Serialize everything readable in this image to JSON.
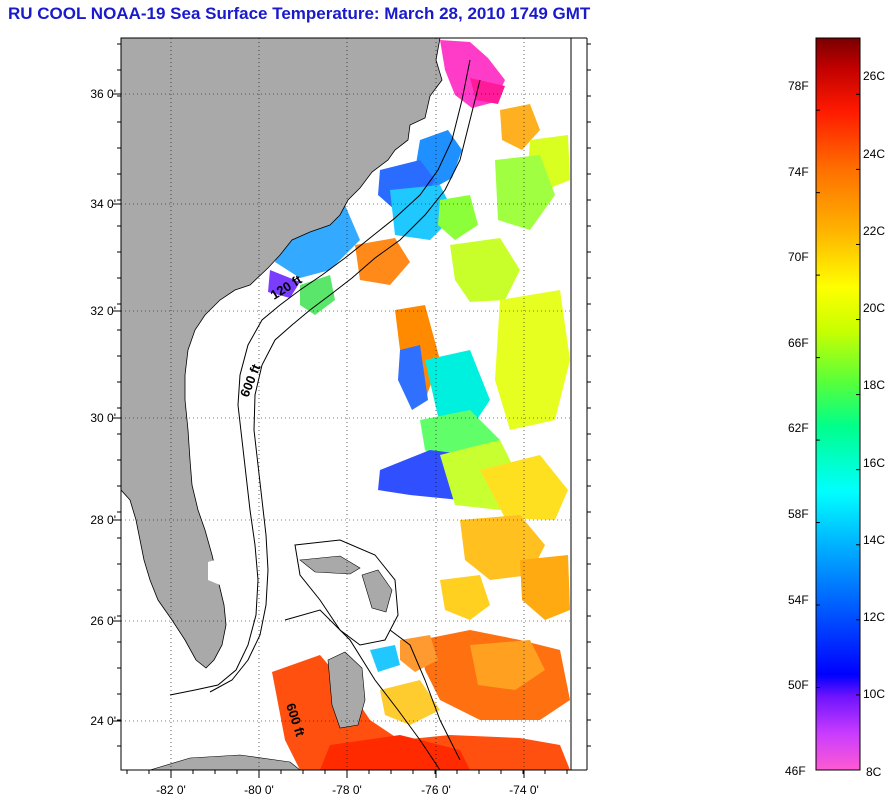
{
  "title": "RU COOL  NOAA-19  Sea Surface Temperature:  March 28, 2010 1749 GMT",
  "map": {
    "lat_labels": [
      "36 0'",
      "34 0'",
      "32 0'",
      "30 0'",
      "28 0'",
      "26 0'",
      "24 0'"
    ],
    "lon_labels": [
      "-82 0'",
      "-80 0'",
      "-78 0'",
      "-76 0'",
      "-74 0'"
    ],
    "contours": [
      "120 ft",
      "600 ft",
      "600 ft"
    ],
    "land_color": "#a9a9a9"
  },
  "colorbar": {
    "fahrenheit_labels": [
      "78F",
      "74F",
      "70F",
      "66F",
      "62F",
      "58F",
      "54F",
      "50F",
      "46F"
    ],
    "celsius_labels": [
      "26C",
      "24C",
      "22C",
      "20C",
      "18C",
      "16C",
      "14C",
      "12C",
      "10C",
      "8C"
    ],
    "range_c": [
      8,
      27.5
    ],
    "range_f": [
      46,
      81.5
    ]
  }
}
